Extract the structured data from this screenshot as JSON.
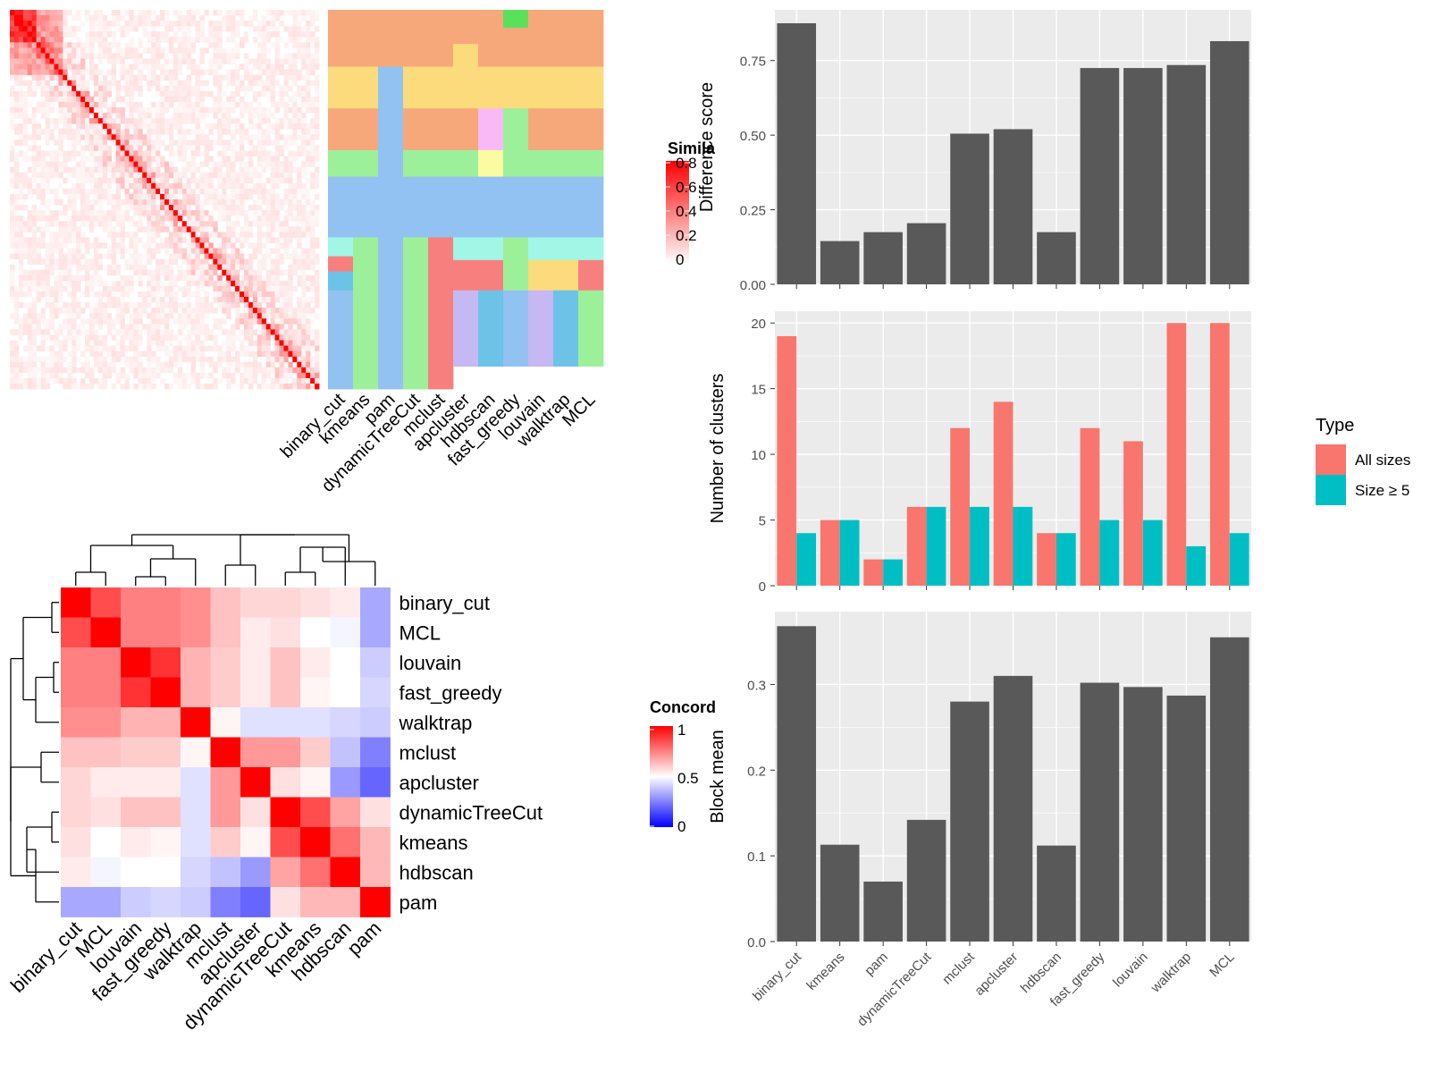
{
  "methods_order": [
    "binary_cut",
    "kmeans",
    "pam",
    "dynamicTreeCut",
    "mclust",
    "apcluster",
    "hdbscan",
    "fast_greedy",
    "louvain",
    "walktrap",
    "MCL"
  ],
  "colors": {
    "bar": "#595959",
    "all_sizes": "#F8766D",
    "size_ge_5": "#00BFC4",
    "panel_bg": "#EBEBEB",
    "grid": "#FFFFFF",
    "heat_high": "#FF0000",
    "heat_mid": "#FFFFFF",
    "heat_low": "#0000FF"
  },
  "similarity_heatmap": {
    "legend_title": "Similarity",
    "legend_ticks": [
      "0.8",
      "0.6",
      "0.4",
      "0.2",
      "0"
    ],
    "size": 70
  },
  "membership_heatmap": {
    "columns": [
      "binary_cut",
      "kmeans",
      "pam",
      "dynamicTreeCut",
      "mclust",
      "apcluster",
      "hdbscan",
      "fast_greedy",
      "louvain",
      "walktrap",
      "MCL"
    ],
    "palette": [
      "#F7A87A",
      "#FBDB7B",
      "#92C2F2",
      "#9CF09A",
      "#F7807F",
      "#C6B8F2",
      "#6DC2E8",
      "#A1F6E5",
      "#F9B9F7",
      "#FBFBA2",
      "#FDEBC0",
      "#5BE05B"
    ]
  },
  "concordance_heatmap": {
    "legend_title": "Concordance",
    "legend_ticks": [
      "1",
      "0.5",
      "0"
    ],
    "labels": [
      "binary_cut",
      "MCL",
      "louvain",
      "fast_greedy",
      "walktrap",
      "mclust",
      "apcluster",
      "dynamicTreeCut",
      "kmeans",
      "hdbscan",
      "pam"
    ],
    "matrix": [
      [
        1.0,
        0.85,
        0.75,
        0.75,
        0.72,
        0.62,
        0.58,
        0.58,
        0.56,
        0.54,
        0.33
      ],
      [
        0.85,
        1.0,
        0.75,
        0.75,
        0.72,
        0.62,
        0.54,
        0.56,
        0.5,
        0.48,
        0.33
      ],
      [
        0.75,
        0.75,
        1.0,
        0.9,
        0.65,
        0.6,
        0.54,
        0.62,
        0.54,
        0.5,
        0.4
      ],
      [
        0.75,
        0.75,
        0.9,
        1.0,
        0.65,
        0.6,
        0.54,
        0.62,
        0.52,
        0.5,
        0.42
      ],
      [
        0.72,
        0.72,
        0.65,
        0.65,
        1.0,
        0.52,
        0.44,
        0.44,
        0.44,
        0.42,
        0.4
      ],
      [
        0.62,
        0.62,
        0.6,
        0.6,
        0.52,
        1.0,
        0.7,
        0.7,
        0.6,
        0.38,
        0.25
      ],
      [
        0.58,
        0.54,
        0.54,
        0.54,
        0.44,
        0.7,
        1.0,
        0.56,
        0.52,
        0.3,
        0.2
      ],
      [
        0.58,
        0.56,
        0.62,
        0.62,
        0.44,
        0.7,
        0.56,
        1.0,
        0.85,
        0.68,
        0.56
      ],
      [
        0.56,
        0.5,
        0.54,
        0.52,
        0.44,
        0.6,
        0.52,
        0.85,
        1.0,
        0.78,
        0.64
      ],
      [
        0.54,
        0.48,
        0.5,
        0.5,
        0.42,
        0.38,
        0.3,
        0.68,
        0.78,
        1.0,
        0.64
      ],
      [
        0.33,
        0.33,
        0.4,
        0.42,
        0.4,
        0.25,
        0.2,
        0.56,
        0.64,
        0.64,
        1.0
      ]
    ]
  },
  "chart_data": [
    {
      "type": "bar",
      "title": "",
      "xlabel": "",
      "ylabel": "Difference score",
      "categories": [
        "binary_cut",
        "kmeans",
        "pam",
        "dynamicTreeCut",
        "mclust",
        "apcluster",
        "hdbscan",
        "fast_greedy",
        "louvain",
        "walktrap",
        "MCL"
      ],
      "values": [
        0.875,
        0.145,
        0.175,
        0.205,
        0.505,
        0.52,
        0.175,
        0.725,
        0.725,
        0.735,
        0.815
      ],
      "ylim": [
        0,
        0.92
      ],
      "yticks": [
        "0.00",
        "0.25",
        "0.50",
        "0.75"
      ],
      "grid": true
    },
    {
      "type": "bar",
      "title": "",
      "xlabel": "",
      "ylabel": "Number of clusters",
      "categories": [
        "binary_cut",
        "kmeans",
        "pam",
        "dynamicTreeCut",
        "mclust",
        "apcluster",
        "hdbscan",
        "fast_greedy",
        "louvain",
        "walktrap",
        "MCL"
      ],
      "series": [
        {
          "name": "All sizes",
          "values": [
            19,
            5,
            2,
            6,
            12,
            14,
            4,
            12,
            11,
            20,
            20
          ]
        },
        {
          "name": "Size ≥ 5",
          "values": [
            4,
            5,
            2,
            6,
            6,
            6,
            4,
            5,
            5,
            3,
            4
          ]
        }
      ],
      "legend_title": "Type",
      "legend_position": "right",
      "ylim": [
        0,
        20.9
      ],
      "yticks": [
        "0",
        "5",
        "10",
        "15",
        "20"
      ],
      "grid": true
    },
    {
      "type": "bar",
      "title": "",
      "xlabel": "",
      "ylabel": "Block mean",
      "categories": [
        "binary_cut",
        "kmeans",
        "pam",
        "dynamicTreeCut",
        "mclust",
        "apcluster",
        "hdbscan",
        "fast_greedy",
        "louvain",
        "walktrap",
        "MCL"
      ],
      "values": [
        0.368,
        0.113,
        0.07,
        0.142,
        0.28,
        0.31,
        0.112,
        0.302,
        0.297,
        0.287,
        0.355
      ],
      "ylim": [
        0,
        0.385
      ],
      "yticks": [
        "0.0",
        "0.1",
        "0.2",
        "0.3"
      ],
      "grid": true
    }
  ]
}
